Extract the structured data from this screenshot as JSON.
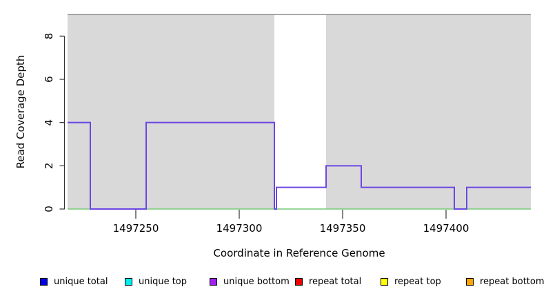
{
  "figure": {
    "ylabel": "Read Coverage Depth",
    "xlabel": "Coordinate in Reference Genome"
  },
  "chart_data": {
    "type": "line",
    "line_style": "step",
    "title": "",
    "xlabel": "Coordinate in Reference Genome",
    "ylabel": "Read Coverage Depth",
    "xlim": [
      1497217,
      1497441
    ],
    "ylim": [
      0,
      9
    ],
    "x_ticks": [
      1497250,
      1497300,
      1497350,
      1497400
    ],
    "y_ticks": [
      0,
      2,
      4,
      6,
      8
    ],
    "grid": false,
    "series": [
      {
        "name": "unique bottom coverage",
        "segments": [
          {
            "start": 1497217,
            "end": 1497228,
            "depth": 4
          },
          {
            "start": 1497228,
            "end": 1497255,
            "depth": 0
          },
          {
            "start": 1497255,
            "end": 1497317,
            "depth": 4
          },
          {
            "start": 1497317,
            "end": 1497318,
            "depth": 0
          },
          {
            "start": 1497318,
            "end": 1497342,
            "depth": 1
          },
          {
            "start": 1497342,
            "end": 1497359,
            "depth": 2
          },
          {
            "start": 1497359,
            "end": 1497404,
            "depth": 1
          },
          {
            "start": 1497404,
            "end": 1497410,
            "depth": 0
          },
          {
            "start": 1497410,
            "end": 1497441,
            "depth": 1
          }
        ]
      }
    ],
    "shaded_regions": [
      {
        "start": 1497217,
        "end": 1497317
      },
      {
        "start": 1497342,
        "end": 1497441
      }
    ],
    "unshaded_region": {
      "start": 1497317,
      "end": 1497342
    },
    "top_line_depth": 9,
    "colors": {
      "step_line": "#6B46E3",
      "zero_line": "#77C877",
      "shade": "#D9D9D9",
      "top_line": "#8C8C8C",
      "axis": "#333333"
    }
  },
  "legend": {
    "items": [
      {
        "label": "unique total",
        "color": "#0000EE"
      },
      {
        "label": "unique top",
        "color": "#00EEEE"
      },
      {
        "label": "unique bottom",
        "color": "#A020F0"
      },
      {
        "label": "repeat total",
        "color": "#EE0000"
      },
      {
        "label": "repeat top",
        "color": "#FFFF00"
      },
      {
        "label": "repeat bottom",
        "color": "#FFA500"
      }
    ]
  }
}
